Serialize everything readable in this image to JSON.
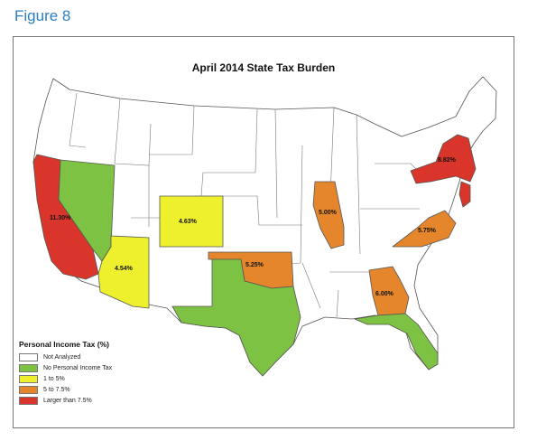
{
  "figure_label": "Figure 8",
  "title": "April 2014 State Tax Burden",
  "colors": {
    "not_analyzed": "#ffffff",
    "no_tax": "#7dc242",
    "low": "#eef02e",
    "mid": "#e5862c",
    "high": "#d9352a",
    "border": "#555555"
  },
  "legend": {
    "title": "Personal Income Tax (%)",
    "items": [
      {
        "label": "Not Analyzed",
        "color": "#ffffff"
      },
      {
        "label": "No Personal Income Tax",
        "color": "#7dc242"
      },
      {
        "label": "1 to 5%",
        "color": "#eef02e"
      },
      {
        "label": "5  to 7.5%",
        "color": "#e5862c"
      },
      {
        "label": "Larger than 7.5%",
        "color": "#d9352a"
      }
    ]
  },
  "states": [
    {
      "name": "California",
      "value": "11.30%",
      "category": "high"
    },
    {
      "name": "Nevada",
      "value": "",
      "category": "no_tax"
    },
    {
      "name": "Arizona",
      "value": "4.54%",
      "category": "low"
    },
    {
      "name": "Colorado",
      "value": "4.63%",
      "category": "low"
    },
    {
      "name": "Texas",
      "value": "",
      "category": "no_tax"
    },
    {
      "name": "Oklahoma",
      "value": "5.25%",
      "category": "mid"
    },
    {
      "name": "Illinois",
      "value": "5.00%",
      "category": "mid"
    },
    {
      "name": "Georgia",
      "value": "6.00%",
      "category": "mid"
    },
    {
      "name": "Virginia",
      "value": "5.75%",
      "category": "mid"
    },
    {
      "name": "Florida",
      "value": "",
      "category": "no_tax"
    },
    {
      "name": "New York",
      "value": "8.82%",
      "category": "high"
    },
    {
      "name": "New Jersey",
      "value": "",
      "category": "high"
    }
  ]
}
